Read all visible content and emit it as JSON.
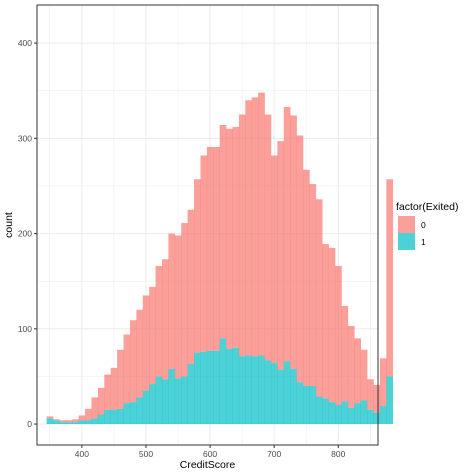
{
  "chart_data": {
    "type": "bar",
    "subtype": "stacked-histogram",
    "xlabel": "CreditScore",
    "ylabel": "count",
    "xlim": [
      330,
      862
    ],
    "ylim": [
      -22,
      440
    ],
    "xticks": [
      400,
      500,
      600,
      700,
      800
    ],
    "yticks": [
      0,
      100,
      200,
      300,
      400
    ],
    "grid": true,
    "bin_start": 350,
    "bin_width": 10,
    "legend": {
      "title": "factor(Exited)",
      "position": "right"
    },
    "series": [
      {
        "name": "0",
        "color": "#F8766D",
        "values": [
          2,
          1,
          2,
          2,
          3,
          5,
          12,
          22,
          28,
          37,
          44,
          62,
          72,
          86,
          92,
          100,
          102,
          116,
          126,
          142,
          150,
          161,
          162,
          182,
          206,
          214,
          214,
          224,
          231,
          232,
          254,
          268,
          272,
          276,
          258,
          218,
          240,
          267,
          266,
          259,
          227,
          212,
          207,
          162,
          162,
          146,
          100,
          86,
          68,
          53,
          32,
          29,
          50,
          207
        ]
      },
      {
        "name": "1",
        "color": "#00BFC4",
        "values": [
          6,
          4,
          2,
          2,
          2,
          4,
          4,
          6,
          10,
          15,
          15,
          16,
          22,
          23,
          28,
          35,
          42,
          50,
          47,
          58,
          48,
          50,
          63,
          75,
          76,
          77,
          77,
          90,
          79,
          80,
          71,
          72,
          71,
          72,
          67,
          64,
          57,
          66,
          58,
          44,
          40,
          40,
          29,
          27,
          23,
          20,
          24,
          17,
          22,
          25,
          15,
          12,
          19,
          50
        ]
      }
    ]
  }
}
